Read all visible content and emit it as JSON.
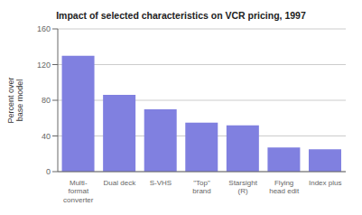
{
  "chart_data": {
    "type": "bar",
    "title": "Impact of selected characteristics on VCR pricing, 1997",
    "categories": [
      "Multi-\nformat\nconverter",
      "Dual deck",
      "S-VHS",
      "\"Top\"\nbrand",
      "Starsight\n(R)",
      "Flying\nhead edit",
      "Index plus"
    ],
    "values": [
      130,
      86,
      70,
      55,
      52,
      27,
      25
    ],
    "color": "#8080e0",
    "ylabel": "Percent over\nbase model",
    "ylim": [
      0,
      160
    ],
    "yticks": [
      0,
      40,
      80,
      120,
      160
    ],
    "grid": true
  }
}
